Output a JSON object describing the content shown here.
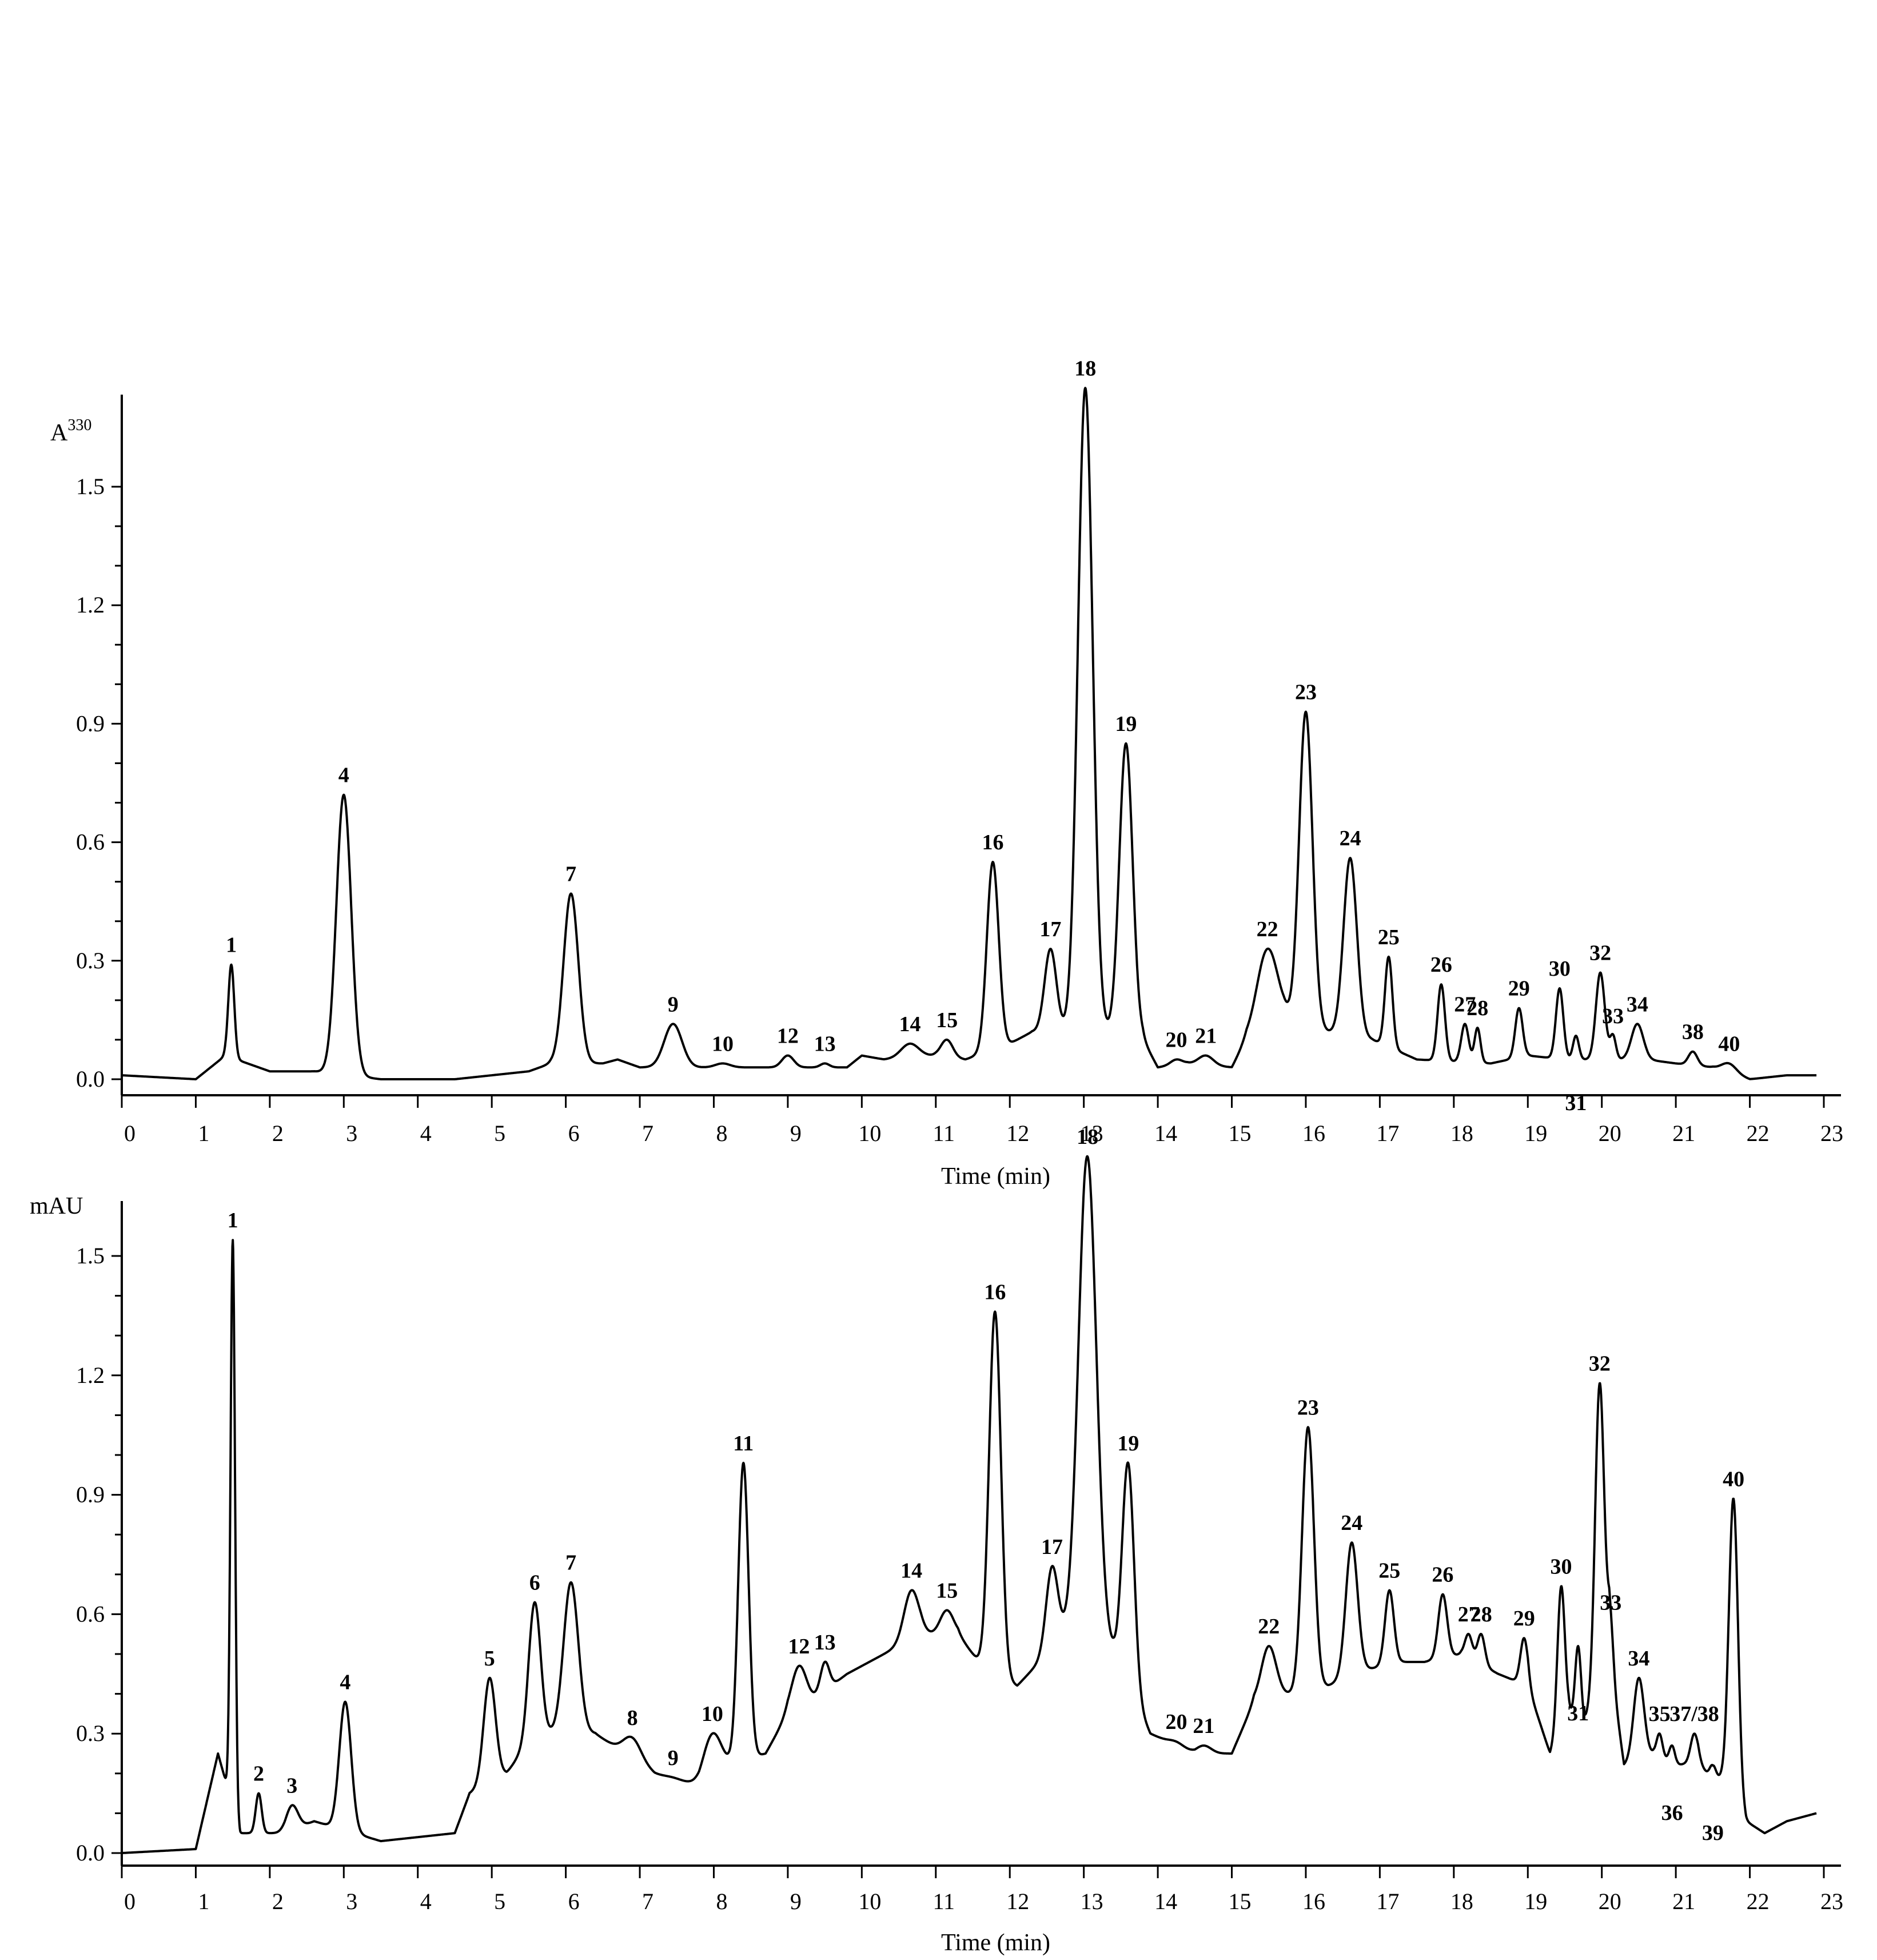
{
  "chart_data": [
    {
      "type": "line",
      "panel": "top",
      "ylabel": "A",
      "ylabel_sup": "330",
      "xlabel": "Time (min)",
      "xlim": [
        0,
        23
      ],
      "ylim": [
        0.0,
        1.5
      ],
      "x_ticks": [
        0,
        1,
        2,
        3,
        4,
        5,
        6,
        7,
        8,
        9,
        10,
        11,
        12,
        13,
        14,
        15,
        16,
        17,
        18,
        19,
        20,
        21,
        22,
        23
      ],
      "y_ticks": [
        {
          "value": 0.0,
          "label": "0.0"
        },
        {
          "value": 0.3,
          "label": "0.3"
        },
        {
          "value": 0.6,
          "label": "0.6"
        },
        {
          "value": 0.9,
          "label": "0.9"
        },
        {
          "value": 1.2,
          "label": "1.2"
        },
        {
          "value": 1.5,
          "label": "1.5"
        }
      ],
      "grid": false,
      "baseline": [
        [
          0.0,
          0.01
        ],
        [
          1.0,
          0.0
        ],
        [
          1.4,
          0.06
        ],
        [
          2.0,
          0.02
        ],
        [
          2.6,
          0.02
        ],
        [
          3.5,
          0.0
        ],
        [
          4.5,
          0.0
        ],
        [
          5.5,
          0.02
        ],
        [
          5.8,
          0.04
        ],
        [
          6.5,
          0.04
        ],
        [
          6.7,
          0.05
        ],
        [
          7.0,
          0.03
        ],
        [
          7.6,
          0.03
        ],
        [
          8.5,
          0.03
        ],
        [
          9.8,
          0.03
        ],
        [
          10.0,
          0.06
        ],
        [
          10.3,
          0.05
        ],
        [
          11.0,
          0.06
        ],
        [
          11.4,
          0.05
        ],
        [
          12.0,
          0.09
        ],
        [
          12.3,
          0.12
        ],
        [
          12.8,
          0.12
        ],
        [
          13.3,
          0.12
        ],
        [
          13.8,
          0.1
        ],
        [
          14.0,
          0.03
        ],
        [
          14.4,
          0.04
        ],
        [
          15.0,
          0.03
        ],
        [
          15.2,
          0.1
        ],
        [
          15.7,
          0.15
        ],
        [
          16.3,
          0.12
        ],
        [
          16.9,
          0.1
        ],
        [
          17.5,
          0.05
        ],
        [
          18.5,
          0.04
        ],
        [
          19.0,
          0.06
        ],
        [
          19.5,
          0.05
        ],
        [
          20.0,
          0.05
        ],
        [
          20.6,
          0.05
        ],
        [
          21.0,
          0.04
        ],
        [
          21.5,
          0.03
        ],
        [
          22.0,
          0.0
        ],
        [
          22.5,
          0.01
        ],
        [
          22.9,
          0.01
        ]
      ],
      "peaks": [
        {
          "label": "1",
          "x": 1.48,
          "y": 0.29,
          "w": 0.04
        },
        {
          "label": "4",
          "x": 3.0,
          "y": 0.72,
          "w": 0.1
        },
        {
          "label": "7",
          "x": 6.07,
          "y": 0.47,
          "w": 0.1
        },
        {
          "label": "9",
          "x": 7.45,
          "y": 0.14,
          "w": 0.12
        },
        {
          "label": "10",
          "x": 8.12,
          "y": 0.04,
          "w": 0.1
        },
        {
          "label": "12",
          "x": 9.0,
          "y": 0.06,
          "w": 0.08
        },
        {
          "label": "13",
          "x": 9.5,
          "y": 0.04,
          "w": 0.06
        },
        {
          "label": "14",
          "x": 10.65,
          "y": 0.09,
          "w": 0.12
        },
        {
          "label": "15",
          "x": 11.15,
          "y": 0.1,
          "w": 0.08
        },
        {
          "label": "16",
          "x": 11.77,
          "y": 0.55,
          "w": 0.08
        },
        {
          "label": "17",
          "x": 12.55,
          "y": 0.33,
          "w": 0.08
        },
        {
          "label": "18",
          "x": 13.02,
          "y": 1.75,
          "w": 0.1
        },
        {
          "label": "19",
          "x": 13.57,
          "y": 0.85,
          "w": 0.09
        },
        {
          "label": "20",
          "x": 14.25,
          "y": 0.05,
          "w": 0.08
        },
        {
          "label": "21",
          "x": 14.65,
          "y": 0.06,
          "w": 0.1
        },
        {
          "label": "22",
          "x": 15.48,
          "y": 0.33,
          "w": 0.14
        },
        {
          "label": "23",
          "x": 16.0,
          "y": 0.93,
          "w": 0.09
        },
        {
          "label": "24",
          "x": 16.6,
          "y": 0.56,
          "w": 0.09
        },
        {
          "label": "25",
          "x": 17.12,
          "y": 0.31,
          "w": 0.05
        },
        {
          "label": "26",
          "x": 17.83,
          "y": 0.24,
          "w": 0.05
        },
        {
          "label": "27",
          "x": 18.15,
          "y": 0.14,
          "w": 0.05
        },
        {
          "label": "28",
          "x": 18.32,
          "y": 0.13,
          "w": 0.04
        },
        {
          "label": "29",
          "x": 18.88,
          "y": 0.18,
          "w": 0.05
        },
        {
          "label": "30",
          "x": 19.43,
          "y": 0.23,
          "w": 0.05
        },
        {
          "label": "31",
          "x": 19.65,
          "y": 0.11,
          "w": 0.04
        },
        {
          "label": "32",
          "x": 19.98,
          "y": 0.27,
          "w": 0.06
        },
        {
          "label": "33",
          "x": 20.15,
          "y": 0.11,
          "w": 0.04
        },
        {
          "label": "34",
          "x": 20.48,
          "y": 0.14,
          "w": 0.08
        },
        {
          "label": "38",
          "x": 21.23,
          "y": 0.07,
          "w": 0.06
        },
        {
          "label": "40",
          "x": 21.72,
          "y": 0.04,
          "w": 0.1
        }
      ]
    },
    {
      "type": "line",
      "panel": "bottom",
      "ylabel": "mAU",
      "xlabel": "Time (min)",
      "xlim": [
        0,
        23
      ],
      "ylim": [
        0.0,
        1.5
      ],
      "x_ticks": [
        0,
        1,
        2,
        3,
        4,
        5,
        6,
        7,
        8,
        9,
        10,
        11,
        12,
        13,
        14,
        15,
        16,
        17,
        18,
        19,
        20,
        21,
        22,
        23
      ],
      "y_ticks": [
        {
          "value": 0.0,
          "label": "0.0"
        },
        {
          "value": 0.3,
          "label": "0.3"
        },
        {
          "value": 0.6,
          "label": "0.6"
        },
        {
          "value": 0.9,
          "label": "0.9"
        },
        {
          "value": 1.2,
          "label": "1.2"
        },
        {
          "value": 1.5,
          "label": "1.5"
        }
      ],
      "grid": false,
      "baseline": [
        [
          0.0,
          0.0
        ],
        [
          1.0,
          0.01
        ],
        [
          1.3,
          0.25
        ],
        [
          1.6,
          0.05
        ],
        [
          2.2,
          0.05
        ],
        [
          2.6,
          0.08
        ],
        [
          3.5,
          0.03
        ],
        [
          4.5,
          0.05
        ],
        [
          4.7,
          0.15
        ],
        [
          5.2,
          0.2
        ],
        [
          5.5,
          0.28
        ],
        [
          5.8,
          0.3
        ],
        [
          6.4,
          0.3
        ],
        [
          6.8,
          0.25
        ],
        [
          7.2,
          0.2
        ],
        [
          7.8,
          0.17
        ],
        [
          8.2,
          0.22
        ],
        [
          8.7,
          0.25
        ],
        [
          9.0,
          0.35
        ],
        [
          9.3,
          0.38
        ],
        [
          9.8,
          0.45
        ],
        [
          10.3,
          0.5
        ],
        [
          10.8,
          0.55
        ],
        [
          11.3,
          0.55
        ],
        [
          11.7,
          0.45
        ],
        [
          12.1,
          0.42
        ],
        [
          12.5,
          0.5
        ],
        [
          13.0,
          0.6
        ],
        [
          13.4,
          0.5
        ],
        [
          13.9,
          0.3
        ],
        [
          14.5,
          0.25
        ],
        [
          15.0,
          0.25
        ],
        [
          15.3,
          0.38
        ],
        [
          15.8,
          0.4
        ],
        [
          16.3,
          0.42
        ],
        [
          16.8,
          0.46
        ],
        [
          17.3,
          0.48
        ],
        [
          17.6,
          0.48
        ],
        [
          18.1,
          0.5
        ],
        [
          18.6,
          0.45
        ],
        [
          19.0,
          0.42
        ],
        [
          19.3,
          0.25
        ],
        [
          19.55,
          0.35
        ],
        [
          19.75,
          0.32
        ],
        [
          20.1,
          0.5
        ],
        [
          20.3,
          0.22
        ],
        [
          20.7,
          0.25
        ],
        [
          21.0,
          0.22
        ],
        [
          21.3,
          0.23
        ],
        [
          21.5,
          0.18
        ],
        [
          21.7,
          0.2
        ],
        [
          21.95,
          0.08
        ],
        [
          22.2,
          0.05
        ],
        [
          22.5,
          0.08
        ],
        [
          22.9,
          0.1
        ]
      ],
      "peaks": [
        {
          "label": "1",
          "x": 1.5,
          "y": 1.54,
          "w": 0.03
        },
        {
          "label": "2",
          "x": 1.85,
          "y": 0.15,
          "w": 0.04
        },
        {
          "label": "3",
          "x": 2.3,
          "y": 0.12,
          "w": 0.08
        },
        {
          "label": "4",
          "x": 3.02,
          "y": 0.38,
          "w": 0.08
        },
        {
          "label": "5",
          "x": 4.97,
          "y": 0.44,
          "w": 0.08
        },
        {
          "label": "6",
          "x": 5.58,
          "y": 0.63,
          "w": 0.08
        },
        {
          "label": "7",
          "x": 6.07,
          "y": 0.68,
          "w": 0.1
        },
        {
          "label": "8",
          "x": 6.9,
          "y": 0.29,
          "w": 0.12
        },
        {
          "label": "9",
          "x": 7.45,
          "y": 0.19,
          "w": 0.1
        },
        {
          "label": "10",
          "x": 7.98,
          "y": 0.3,
          "w": 0.12
        },
        {
          "label": "11",
          "x": 8.4,
          "y": 0.98,
          "w": 0.07
        },
        {
          "label": "12",
          "x": 9.15,
          "y": 0.47,
          "w": 0.1
        },
        {
          "label": "13",
          "x": 9.5,
          "y": 0.48,
          "w": 0.06
        },
        {
          "label": "14",
          "x": 10.67,
          "y": 0.66,
          "w": 0.1
        },
        {
          "label": "15",
          "x": 11.15,
          "y": 0.61,
          "w": 0.09
        },
        {
          "label": "16",
          "x": 11.8,
          "y": 1.36,
          "w": 0.08
        },
        {
          "label": "17",
          "x": 12.57,
          "y": 0.72,
          "w": 0.08
        },
        {
          "label": "18",
          "x": 13.05,
          "y": 1.75,
          "w": 0.12
        },
        {
          "label": "19",
          "x": 13.6,
          "y": 0.98,
          "w": 0.08
        },
        {
          "label": "20",
          "x": 14.25,
          "y": 0.28,
          "w": 0.1
        },
        {
          "label": "21",
          "x": 14.62,
          "y": 0.27,
          "w": 0.1
        },
        {
          "label": "22",
          "x": 15.5,
          "y": 0.52,
          "w": 0.1
        },
        {
          "label": "23",
          "x": 16.03,
          "y": 1.07,
          "w": 0.08
        },
        {
          "label": "24",
          "x": 16.62,
          "y": 0.78,
          "w": 0.08
        },
        {
          "label": "25",
          "x": 17.13,
          "y": 0.66,
          "w": 0.06
        },
        {
          "label": "26",
          "x": 17.85,
          "y": 0.65,
          "w": 0.06
        },
        {
          "label": "27",
          "x": 18.2,
          "y": 0.55,
          "w": 0.05
        },
        {
          "label": "28",
          "x": 18.37,
          "y": 0.55,
          "w": 0.05
        },
        {
          "label": "29",
          "x": 18.95,
          "y": 0.54,
          "w": 0.05
        },
        {
          "label": "30",
          "x": 19.45,
          "y": 0.67,
          "w": 0.05
        },
        {
          "label": "31",
          "x": 19.68,
          "y": 0.52,
          "w": 0.04
        },
        {
          "label": "32",
          "x": 19.97,
          "y": 1.18,
          "w": 0.06
        },
        {
          "label": "33",
          "x": 20.12,
          "y": 0.58,
          "w": 0.04
        },
        {
          "label": "34",
          "x": 20.5,
          "y": 0.44,
          "w": 0.07
        },
        {
          "label": "35",
          "x": 20.78,
          "y": 0.3,
          "w": 0.04
        },
        {
          "label": "36",
          "x": 20.95,
          "y": 0.27,
          "w": 0.04
        },
        {
          "label": "37/38",
          "x": 21.25,
          "y": 0.3,
          "w": 0.05
        },
        {
          "label": "39",
          "x": 21.5,
          "y": 0.22,
          "w": 0.04
        },
        {
          "label": "40",
          "x": 21.78,
          "y": 0.89,
          "w": 0.06
        }
      ]
    }
  ]
}
